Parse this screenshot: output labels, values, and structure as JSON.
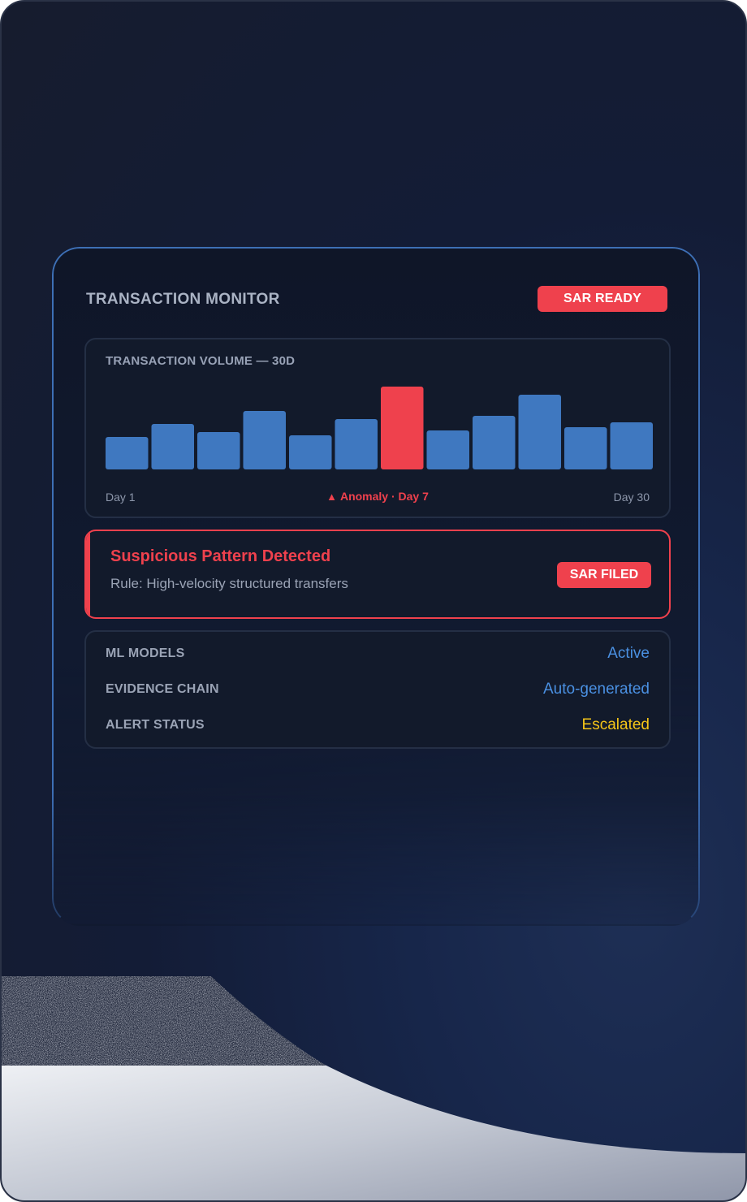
{
  "monitor": {
    "title": "TRANSACTION MONITOR",
    "status_badge": "SAR READY"
  },
  "chart": {
    "title": "TRANSACTION VOLUME — 30D",
    "start_label": "Day 1",
    "end_label": "Day 30",
    "anomaly_label": "Anomaly · Day 7",
    "anomaly_icon": "warning-icon",
    "bar_color": "#3f78c0",
    "anomaly_color": "#ef414d"
  },
  "chart_data": {
    "type": "bar",
    "values": [
      40,
      56,
      46,
      72,
      42,
      62,
      102,
      48,
      66,
      92,
      52,
      58
    ],
    "highlight_index": 6,
    "ylim": [
      0,
      110
    ]
  },
  "alert": {
    "title": "Suspicious Pattern Detected",
    "rule": "Rule: High-velocity structured transfers",
    "badge": "SAR FILED"
  },
  "status": [
    {
      "label": "ML MODELS",
      "value": "Active",
      "color": "#4a90e2"
    },
    {
      "label": "EVIDENCE CHAIN",
      "value": "Auto-generated",
      "color": "#4a90e2"
    },
    {
      "label": "ALERT STATUS",
      "value": "Escalated",
      "color": "#f5c518"
    }
  ]
}
